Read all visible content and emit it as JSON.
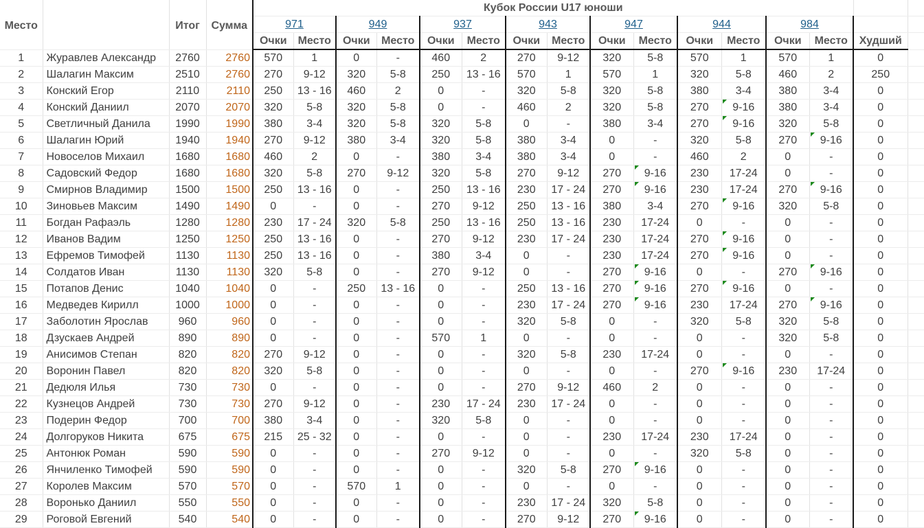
{
  "headers": {
    "place": "Место",
    "total": "Итог",
    "sum": "Сумма",
    "cup_title": "Кубок России U17 юноши",
    "points": "Очки",
    "placeCol": "Место",
    "worst": "Худший"
  },
  "tournaments": [
    "971",
    "949",
    "937",
    "943",
    "947",
    "944",
    "984"
  ],
  "rows": [
    {
      "p": "1",
      "n": "Журавлев Александр",
      "t": "2760",
      "s": "2760",
      "r": [
        [
          "570",
          "1"
        ],
        [
          "0",
          "-"
        ],
        [
          "460",
          "2"
        ],
        [
          "270",
          "9-12"
        ],
        [
          "320",
          "5-8"
        ],
        [
          "570",
          "1"
        ],
        [
          "570",
          "1"
        ]
      ],
      "w": "0"
    },
    {
      "p": "2",
      "n": "Шалагин Максим",
      "t": "2510",
      "s": "2760",
      "r": [
        [
          "270",
          "9-12"
        ],
        [
          "320",
          "5-8"
        ],
        [
          "250",
          "13 - 16"
        ],
        [
          "570",
          "1"
        ],
        [
          "570",
          "1"
        ],
        [
          "320",
          "5-8"
        ],
        [
          "460",
          "2"
        ]
      ],
      "w": "250"
    },
    {
      "p": "3",
      "n": "Конский Егор",
      "t": "2110",
      "s": "2110",
      "r": [
        [
          "250",
          "13 - 16"
        ],
        [
          "460",
          "2"
        ],
        [
          "0",
          "-"
        ],
        [
          "320",
          "5-8"
        ],
        [
          "320",
          "5-8"
        ],
        [
          "380",
          "3-4"
        ],
        [
          "380",
          "3-4"
        ]
      ],
      "w": "0"
    },
    {
      "p": "4",
      "n": "Конский Даниил",
      "t": "2070",
      "s": "2070",
      "r": [
        [
          "320",
          "5-8"
        ],
        [
          "320",
          "5-8"
        ],
        [
          "0",
          "-"
        ],
        [
          "460",
          "2"
        ],
        [
          "320",
          "5-8"
        ],
        [
          "270",
          "9-16"
        ],
        [
          "380",
          "3-4"
        ]
      ],
      "w": "0"
    },
    {
      "p": "5",
      "n": "Светличный Данила",
      "t": "1990",
      "s": "1990",
      "r": [
        [
          "380",
          "3-4"
        ],
        [
          "320",
          "5-8"
        ],
        [
          "320",
          "5-8"
        ],
        [
          "0",
          "-"
        ],
        [
          "380",
          "3-4"
        ],
        [
          "270",
          "9-16"
        ],
        [
          "320",
          "5-8"
        ]
      ],
      "w": "0"
    },
    {
      "p": "6",
      "n": "Шалагин Юрий",
      "t": "1940",
      "s": "1940",
      "r": [
        [
          "270",
          "9-12"
        ],
        [
          "380",
          "3-4"
        ],
        [
          "320",
          "5-8"
        ],
        [
          "380",
          "3-4"
        ],
        [
          "0",
          "-"
        ],
        [
          "320",
          "5-8"
        ],
        [
          "270",
          "9-16"
        ]
      ],
      "w": "0"
    },
    {
      "p": "7",
      "n": "Новоселов Михаил",
      "t": "1680",
      "s": "1680",
      "r": [
        [
          "460",
          "2"
        ],
        [
          "0",
          "-"
        ],
        [
          "380",
          "3-4"
        ],
        [
          "380",
          "3-4"
        ],
        [
          "0",
          "-"
        ],
        [
          "460",
          "2"
        ],
        [
          "0",
          "-"
        ]
      ],
      "w": "0"
    },
    {
      "p": "8",
      "n": "Садовский Федор",
      "t": "1680",
      "s": "1680",
      "r": [
        [
          "320",
          "5-8"
        ],
        [
          "270",
          "9-12"
        ],
        [
          "320",
          "5-8"
        ],
        [
          "270",
          "9-12"
        ],
        [
          "270",
          "9-16"
        ],
        [
          "230",
          "17-24"
        ],
        [
          "0",
          "-"
        ]
      ],
      "w": "0"
    },
    {
      "p": "9",
      "n": "Смирнов Владимир",
      "t": "1500",
      "s": "1500",
      "r": [
        [
          "250",
          "13 - 16"
        ],
        [
          "0",
          "-"
        ],
        [
          "250",
          "13 - 16"
        ],
        [
          "230",
          "17 - 24"
        ],
        [
          "270",
          "9-16"
        ],
        [
          "230",
          "17-24"
        ],
        [
          "270",
          "9-16"
        ]
      ],
      "w": "0"
    },
    {
      "p": "10",
      "n": "Зиновьев Максим",
      "t": "1490",
      "s": "1490",
      "r": [
        [
          "0",
          "-"
        ],
        [
          "0",
          "-"
        ],
        [
          "270",
          "9-12"
        ],
        [
          "250",
          "13 - 16"
        ],
        [
          "380",
          "3-4"
        ],
        [
          "270",
          "9-16"
        ],
        [
          "320",
          "5-8"
        ]
      ],
      "w": "0"
    },
    {
      "p": "11",
      "n": "Богдан Рафаэль",
      "t": "1280",
      "s": "1280",
      "r": [
        [
          "230",
          "17 - 24"
        ],
        [
          "320",
          "5-8"
        ],
        [
          "250",
          "13 - 16"
        ],
        [
          "250",
          "13 - 16"
        ],
        [
          "230",
          "17-24"
        ],
        [
          "0",
          "-"
        ],
        [
          "0",
          "-"
        ]
      ],
      "w": "0"
    },
    {
      "p": "12",
      "n": "Иванов Вадим",
      "t": "1250",
      "s": "1250",
      "r": [
        [
          "250",
          "13 - 16"
        ],
        [
          "0",
          "-"
        ],
        [
          "270",
          "9-12"
        ],
        [
          "230",
          "17 - 24"
        ],
        [
          "230",
          "17-24"
        ],
        [
          "270",
          "9-16"
        ],
        [
          "0",
          "-"
        ]
      ],
      "w": "0"
    },
    {
      "p": "13",
      "n": "Ефремов Тимофей",
      "t": "1130",
      "s": "1130",
      "r": [
        [
          "250",
          "13 - 16"
        ],
        [
          "0",
          "-"
        ],
        [
          "380",
          "3-4"
        ],
        [
          "0",
          "-"
        ],
        [
          "230",
          "17-24"
        ],
        [
          "270",
          "9-16"
        ],
        [
          "0",
          "-"
        ]
      ],
      "w": "0"
    },
    {
      "p": "14",
      "n": "Солдатов Иван",
      "t": "1130",
      "s": "1130",
      "r": [
        [
          "320",
          "5-8"
        ],
        [
          "0",
          "-"
        ],
        [
          "270",
          "9-12"
        ],
        [
          "0",
          "-"
        ],
        [
          "270",
          "9-16"
        ],
        [
          "0",
          "-"
        ],
        [
          "270",
          "9-16"
        ]
      ],
      "w": "0"
    },
    {
      "p": "15",
      "n": "Потапов Денис",
      "t": "1040",
      "s": "1040",
      "r": [
        [
          "0",
          "-"
        ],
        [
          "250",
          "13 - 16"
        ],
        [
          "0",
          "-"
        ],
        [
          "250",
          "13 - 16"
        ],
        [
          "270",
          "9-16"
        ],
        [
          "270",
          "9-16"
        ],
        [
          "0",
          "-"
        ]
      ],
      "w": "0"
    },
    {
      "p": "16",
      "n": "Медведев Кирилл",
      "t": "1000",
      "s": "1000",
      "r": [
        [
          "0",
          "-"
        ],
        [
          "0",
          "-"
        ],
        [
          "0",
          "-"
        ],
        [
          "230",
          "17 - 24"
        ],
        [
          "270",
          "9-16"
        ],
        [
          "230",
          "17-24"
        ],
        [
          "270",
          "9-16"
        ]
      ],
      "w": "0"
    },
    {
      "p": "17",
      "n": "Заболотин Ярослав",
      "t": "960",
      "s": "960",
      "r": [
        [
          "0",
          "-"
        ],
        [
          "0",
          "-"
        ],
        [
          "0",
          "-"
        ],
        [
          "320",
          "5-8"
        ],
        [
          "0",
          "-"
        ],
        [
          "320",
          "5-8"
        ],
        [
          "320",
          "5-8"
        ]
      ],
      "w": "0"
    },
    {
      "p": "18",
      "n": "Дзускаев Андрей",
      "t": "890",
      "s": "890",
      "r": [
        [
          "0",
          "-"
        ],
        [
          "0",
          "-"
        ],
        [
          "570",
          "1"
        ],
        [
          "0",
          "-"
        ],
        [
          "0",
          "-"
        ],
        [
          "0",
          "-"
        ],
        [
          "320",
          "5-8"
        ]
      ],
      "w": "0"
    },
    {
      "p": "19",
      "n": "Анисимов Степан",
      "t": "820",
      "s": "820",
      "r": [
        [
          "270",
          "9-12"
        ],
        [
          "0",
          "-"
        ],
        [
          "0",
          "-"
        ],
        [
          "320",
          "5-8"
        ],
        [
          "230",
          "17-24"
        ],
        [
          "0",
          "-"
        ],
        [
          "0",
          "-"
        ]
      ],
      "w": "0"
    },
    {
      "p": "20",
      "n": "Воронин Павел",
      "t": "820",
      "s": "820",
      "r": [
        [
          "320",
          "5-8"
        ],
        [
          "0",
          "-"
        ],
        [
          "0",
          "-"
        ],
        [
          "0",
          "-"
        ],
        [
          "0",
          "-"
        ],
        [
          "270",
          "9-16"
        ],
        [
          "230",
          "17-24"
        ]
      ],
      "w": "0"
    },
    {
      "p": "21",
      "n": "Дедюля Илья",
      "t": "730",
      "s": "730",
      "r": [
        [
          "0",
          "-"
        ],
        [
          "0",
          "-"
        ],
        [
          "0",
          "-"
        ],
        [
          "270",
          "9-12"
        ],
        [
          "460",
          "2"
        ],
        [
          "0",
          "-"
        ],
        [
          "0",
          "-"
        ]
      ],
      "w": "0"
    },
    {
      "p": "22",
      "n": "Кузнецов Андрей",
      "t": "730",
      "s": "730",
      "r": [
        [
          "270",
          "9-12"
        ],
        [
          "0",
          "-"
        ],
        [
          "230",
          "17 - 24"
        ],
        [
          "230",
          "17 - 24"
        ],
        [
          "0",
          "-"
        ],
        [
          "0",
          "-"
        ],
        [
          "0",
          "-"
        ]
      ],
      "w": "0"
    },
    {
      "p": "23",
      "n": "Подерин Федор",
      "t": "700",
      "s": "700",
      "r": [
        [
          "380",
          "3-4"
        ],
        [
          "0",
          "-"
        ],
        [
          "320",
          "5-8"
        ],
        [
          "0",
          "-"
        ],
        [
          "0",
          "-"
        ],
        [
          "0",
          "-"
        ],
        [
          "0",
          "-"
        ]
      ],
      "w": "0"
    },
    {
      "p": "24",
      "n": "Долгоруков Никита",
      "t": "675",
      "s": "675",
      "r": [
        [
          "215",
          "25 - 32"
        ],
        [
          "0",
          "-"
        ],
        [
          "0",
          "-"
        ],
        [
          "0",
          "-"
        ],
        [
          "230",
          "17-24"
        ],
        [
          "230",
          "17-24"
        ],
        [
          "0",
          "-"
        ]
      ],
      "w": "0"
    },
    {
      "p": "25",
      "n": "Антонюк Роман",
      "t": "590",
      "s": "590",
      "r": [
        [
          "0",
          "-"
        ],
        [
          "0",
          "-"
        ],
        [
          "270",
          "9-12"
        ],
        [
          "0",
          "-"
        ],
        [
          "0",
          "-"
        ],
        [
          "320",
          "5-8"
        ],
        [
          "0",
          "-"
        ]
      ],
      "w": "0"
    },
    {
      "p": "26",
      "n": "Янчиленко Тимофей",
      "t": "590",
      "s": "590",
      "r": [
        [
          "0",
          "-"
        ],
        [
          "0",
          "-"
        ],
        [
          "0",
          "-"
        ],
        [
          "320",
          "5-8"
        ],
        [
          "270",
          "9-16"
        ],
        [
          "0",
          "-"
        ],
        [
          "0",
          "-"
        ]
      ],
      "w": "0"
    },
    {
      "p": "27",
      "n": "Королев Максим",
      "t": "570",
      "s": "570",
      "r": [
        [
          "0",
          "-"
        ],
        [
          "570",
          "1"
        ],
        [
          "0",
          "-"
        ],
        [
          "0",
          "-"
        ],
        [
          "0",
          "-"
        ],
        [
          "0",
          "-"
        ],
        [
          "0",
          "-"
        ]
      ],
      "w": "0"
    },
    {
      "p": "28",
      "n": "Воронько Даниил",
      "t": "550",
      "s": "550",
      "r": [
        [
          "0",
          "-"
        ],
        [
          "0",
          "-"
        ],
        [
          "0",
          "-"
        ],
        [
          "230",
          "17 - 24"
        ],
        [
          "320",
          "5-8"
        ],
        [
          "0",
          "-"
        ],
        [
          "0",
          "-"
        ]
      ],
      "w": "0"
    },
    {
      "p": "29",
      "n": "Роговой Евгений",
      "t": "540",
      "s": "540",
      "r": [
        [
          "0",
          "-"
        ],
        [
          "0",
          "-"
        ],
        [
          "0",
          "-"
        ],
        [
          "270",
          "9-12"
        ],
        [
          "270",
          "9-16"
        ],
        [
          "0",
          "-"
        ],
        [
          "0",
          "-"
        ]
      ],
      "w": "0"
    }
  ]
}
